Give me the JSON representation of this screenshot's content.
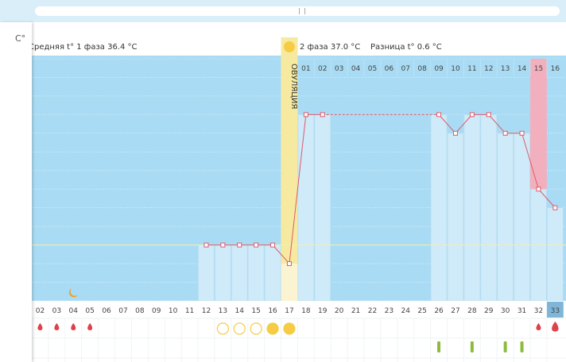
{
  "header": {
    "phase1_label": "Средняя t° 1 фаза",
    "phase1_value": "36.4 °C",
    "phase2_label": "2 фаза",
    "phase2_value": "37.0 °C",
    "diff_label": "Разница t°",
    "diff_value": "0.6 °C",
    "ovulation_label": "ОВУЛЯЦИЯ",
    "unit": "C°"
  },
  "colors": {
    "bg_blue": "#a9dcf4",
    "bar_fill": "#cfeaf8",
    "line": "#e05a6a",
    "ovulation": "#f6eaa1",
    "highlight_day": "#f2b0be",
    "drop": "#e0404a",
    "circle_yellow": "#f6cc45",
    "green_mark": "#8cbc3c"
  },
  "chart_data": {
    "type": "line",
    "ylim": [
      36.1,
      37.4
    ],
    "yticks": [
      "37.4",
      "37.3",
      "37.2",
      "37.1",
      "37.0",
      "36.9",
      "36.8",
      "36.7",
      "36.6",
      "36.5",
      "36.4",
      "36.3",
      "36.2",
      "36.1"
    ],
    "cycle_days": [
      "02",
      "03",
      "04",
      "05",
      "06",
      "07",
      "08",
      "09",
      "10",
      "11",
      "12",
      "13",
      "14",
      "15",
      "16",
      "17",
      "18",
      "19",
      "20",
      "21",
      "22",
      "23",
      "24",
      "25",
      "26",
      "27",
      "28",
      "29",
      "30",
      "31",
      "32",
      "33"
    ],
    "phase2_days": [
      "01",
      "02",
      "03",
      "04",
      "05",
      "06",
      "07",
      "08",
      "09",
      "10",
      "11",
      "12",
      "13",
      "14",
      "15",
      "16"
    ],
    "temps": [
      {
        "day": "12",
        "value": 36.4
      },
      {
        "day": "13",
        "value": 36.4
      },
      {
        "day": "14",
        "value": 36.4
      },
      {
        "day": "15",
        "value": 36.4
      },
      {
        "day": "16",
        "value": 36.4
      },
      {
        "day": "17",
        "value": 36.3
      },
      {
        "day": "18",
        "value": 37.1
      },
      {
        "day": "19",
        "value": 37.1
      },
      {
        "day": "26",
        "value": 37.1
      },
      {
        "day": "27",
        "value": 37.0
      },
      {
        "day": "28",
        "value": 37.1
      },
      {
        "day": "29",
        "value": 37.1
      },
      {
        "day": "30",
        "value": 37.0
      },
      {
        "day": "31",
        "value": 37.0
      },
      {
        "day": "32",
        "value": 36.7
      },
      {
        "day": "33",
        "value": 36.6
      }
    ],
    "coverline": 36.4,
    "ovulation_day": "17",
    "highlight_day": "32",
    "today": "33",
    "menstruation_days": [
      "02",
      "03",
      "04",
      "05",
      "32",
      "33"
    ],
    "circle_days": [
      {
        "day": "13",
        "type": "empty"
      },
      {
        "day": "14",
        "type": "empty"
      },
      {
        "day": "15",
        "type": "empty"
      },
      {
        "day": "16",
        "type": "filled"
      },
      {
        "day": "17",
        "type": "filled"
      }
    ],
    "green_days": [
      "26",
      "28",
      "30",
      "31"
    ],
    "moon_day": "04"
  }
}
